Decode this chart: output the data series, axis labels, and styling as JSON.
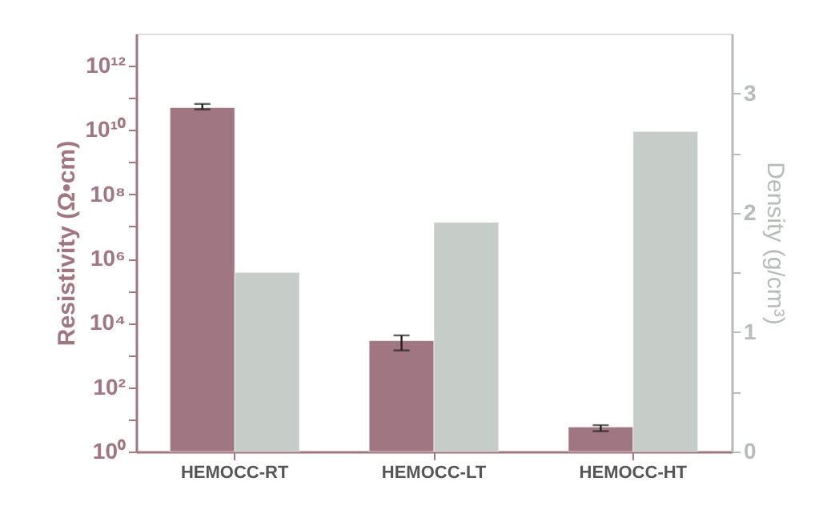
{
  "chart_data": {
    "type": "bar",
    "categories": [
      "HEMOCC-RT",
      "HEMOCC-LT",
      "HEMOCC-HT"
    ],
    "ylabel": "Resistivity (Ω•cm)",
    "y2label": "Density (g/cm³)",
    "log": "y",
    "ylim": [
      1,
      10000000000000.0
    ],
    "yticks": [
      {
        "value": 1,
        "label": "10⁰"
      },
      {
        "value": 10,
        "label": null
      },
      {
        "value": 100,
        "label": "10²"
      },
      {
        "value": 1000,
        "label": null
      },
      {
        "value": 10000,
        "label": "10⁴"
      },
      {
        "value": 100000,
        "label": null
      },
      {
        "value": 1000000,
        "label": "10⁶"
      },
      {
        "value": 10000000,
        "label": null
      },
      {
        "value": 100000000,
        "label": "10⁸"
      },
      {
        "value": 1000000000,
        "label": null
      },
      {
        "value": 10000000000,
        "label": "10¹⁰"
      },
      {
        "value": 100000000000,
        "label": null
      },
      {
        "value": 1000000000000,
        "label": "10¹²"
      }
    ],
    "y2lim": [
      0,
      3.5
    ],
    "y2ticks": [
      0,
      {
        "value": 0.5,
        "label": null
      },
      1,
      {
        "value": 1.5,
        "label": null
      },
      2,
      {
        "value": 2.5,
        "label": null
      },
      3
    ],
    "grid": false,
    "series": [
      {
        "color": "#a07682",
        "values": [
          50000000000.0,
          2800,
          5.8
        ],
        "errors": [
          [
            44000000000.0,
            65000000000.0
          ],
          [
            1400,
            4100
          ],
          [
            4.3,
            6.6
          ]
        ]
      },
      {
        "color": "#c6ccc7",
        "axis": "y2",
        "values": [
          1.5,
          1.92,
          2.68
        ]
      }
    ]
  }
}
